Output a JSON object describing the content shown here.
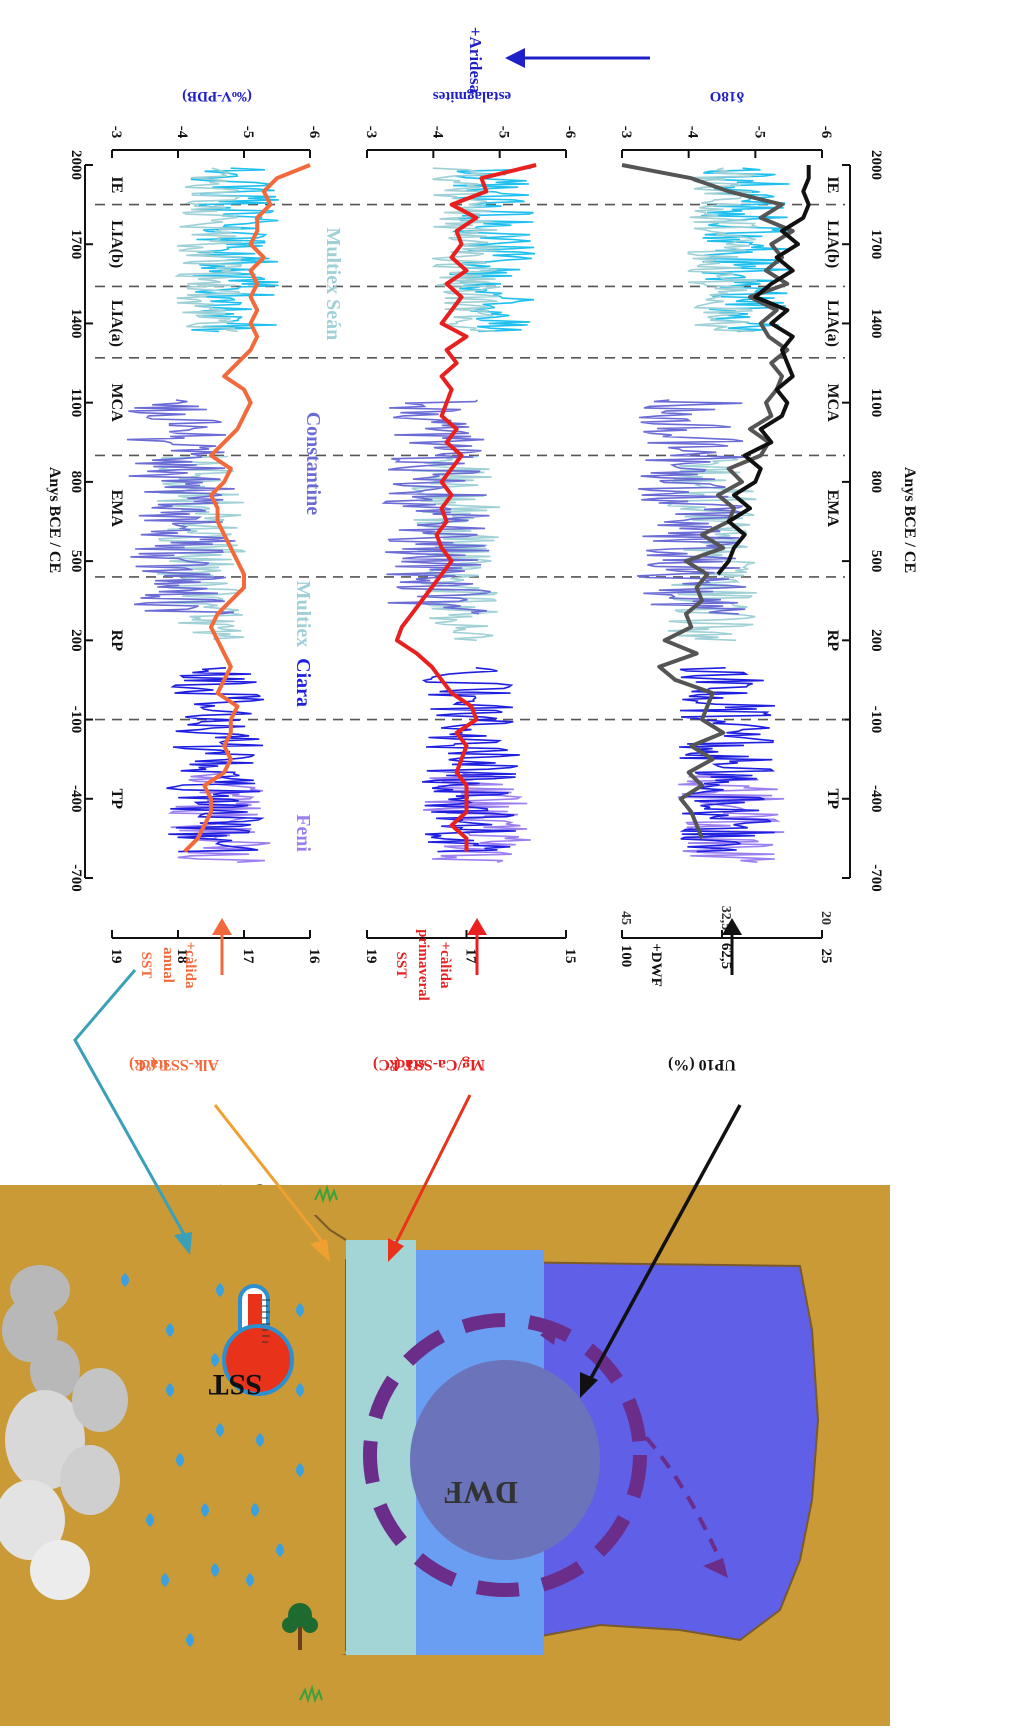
{
  "chart_data": {
    "type": "line",
    "orientation": "rotated",
    "xaxis": {
      "label": "Anys BCE / CE",
      "ticks": [
        -700,
        -400,
        -100,
        200,
        500,
        800,
        1100,
        1400,
        1700,
        2000
      ],
      "range": [
        -700,
        2000
      ]
    },
    "periods": [
      {
        "label": "TP",
        "center": -400
      },
      {
        "label": "RP",
        "center": 200
      },
      {
        "label": "EMA",
        "center": 700
      },
      {
        "label": "MCA",
        "center": 1100
      },
      {
        "label": "LIA(a)",
        "center": 1400
      },
      {
        "label": "LIA(b)",
        "center": 1700
      },
      {
        "label": "IE",
        "center": 1925
      }
    ],
    "period_boundaries": [
      -100,
      440,
      900,
      1270,
      1540,
      1850
    ],
    "panels": [
      {
        "id": "panel1",
        "left_axis": {
          "label_lines": [
            "stack",
            "Alk-SST (ºC)"
          ],
          "ticks": [
            16,
            17,
            18,
            19
          ],
          "range": [
            16,
            19
          ]
        },
        "left_note": [
          "SST",
          "anual",
          "+càlida"
        ],
        "right_axis": {
          "label": "(‰V-PDB)",
          "ticks": [
            -6,
            -5,
            -4,
            -3
          ],
          "range": [
            -6,
            -3
          ]
        },
        "series_labels": [
          "Feni",
          "Ciara",
          "Multiex",
          "Constantine",
          "Multiex Seán"
        ],
        "main_series": {
          "color": "#f26a3b",
          "x": [
            -600,
            -550,
            -500,
            -450,
            -400,
            -350,
            -300,
            -250,
            -200,
            -150,
            -100,
            -50,
            0,
            50,
            100,
            150,
            200,
            250,
            300,
            350,
            400,
            450,
            500,
            550,
            600,
            650,
            700,
            750,
            800,
            850,
            900,
            950,
            1000,
            1050,
            1100,
            1150,
            1200,
            1250,
            1300,
            1350,
            1400,
            1450,
            1500,
            1550,
            1600,
            1650,
            1700,
            1750,
            1800,
            1850,
            1900,
            1950,
            2000
          ],
          "y": [
            17.9,
            17.7,
            17.6,
            17.5,
            17.5,
            17.6,
            17.3,
            17.2,
            17.3,
            17.2,
            17.2,
            17.1,
            17.4,
            17.3,
            17.2,
            17.3,
            17.4,
            17.5,
            17.4,
            17.2,
            17.0,
            17.0,
            17.1,
            17.2,
            17.3,
            17.4,
            17.4,
            17.5,
            17.3,
            17.2,
            17.5,
            17.3,
            17.1,
            17.0,
            16.9,
            17.0,
            17.3,
            17.1,
            16.9,
            16.8,
            16.9,
            16.8,
            16.9,
            16.8,
            16.9,
            16.7,
            16.9,
            16.8,
            16.8,
            16.6,
            16.7,
            16.5,
            16.0
          ]
        }
      },
      {
        "id": "panel2",
        "left_axis": {
          "label_lines": [
            "stack",
            "Mg/Ca-SST (ºC)"
          ],
          "ticks": [
            15,
            17,
            19
          ],
          "range": [
            15,
            19
          ]
        },
        "left_note": [
          "SST",
          "primaveral",
          "+càlida"
        ],
        "right_axis": {
          "label": "estalagmites",
          "ticks": [
            -6,
            -5,
            -4,
            -3
          ],
          "range": [
            -6,
            -3
          ]
        },
        "main_series": {
          "color": "#e82020",
          "x": [
            -600,
            -550,
            -500,
            -450,
            -400,
            -350,
            -300,
            -250,
            -200,
            -150,
            -100,
            -50,
            0,
            50,
            100,
            150,
            200,
            250,
            300,
            350,
            400,
            450,
            500,
            550,
            600,
            650,
            700,
            750,
            800,
            850,
            900,
            950,
            1000,
            1050,
            1100,
            1150,
            1200,
            1250,
            1300,
            1350,
            1400,
            1450,
            1500,
            1550,
            1600,
            1650,
            1700,
            1750,
            1800,
            1850,
            1900,
            1950,
            2000
          ],
          "y": [
            17.0,
            17.0,
            17.3,
            17.0,
            17.0,
            17.0,
            17.2,
            17.1,
            17.0,
            17.2,
            16.8,
            16.9,
            17.3,
            17.5,
            17.7,
            18.0,
            18.4,
            18.3,
            18.1,
            17.9,
            17.7,
            17.5,
            17.3,
            17.5,
            17.6,
            17.4,
            17.5,
            17.3,
            17.5,
            17.3,
            17.1,
            17.4,
            17.2,
            17.5,
            17.4,
            17.3,
            17.5,
            17.2,
            17.4,
            17.0,
            17.5,
            17.3,
            17.1,
            17.4,
            17.0,
            17.3,
            17.1,
            17.2,
            16.8,
            17.3,
            16.6,
            16.7,
            15.6
          ]
        }
      },
      {
        "id": "panel3",
        "left_axis": {
          "label": "UP10 (%)",
          "ticks": [
            100,
            62.5,
            25
          ],
          "range": [
            25,
            100
          ]
        },
        "left_axis_secondary": {
          "ticks": [
            45,
            32.5,
            20
          ]
        },
        "left_note": [
          "+DWF"
        ],
        "right_axis": {
          "label": "δ18O",
          "ticks": [
            -6,
            -5,
            -4,
            -3
          ],
          "range": [
            -6,
            -3
          ]
        },
        "right_note": "+Aridesa",
        "series": [
          {
            "name": "",
            "color": "#555555",
            "x": [
              -550,
              -500,
              -450,
              -400,
              -350,
              -300,
              -250,
              -200,
              -150,
              -100,
              -50,
              0,
              50,
              100,
              150,
              200,
              250,
              300,
              350,
              400,
              450,
              500,
              550,
              600,
              650,
              700,
              750,
              800,
              850,
              900,
              950,
              1000,
              1050,
              1100,
              1150,
              1200,
              1250,
              1300,
              1350,
              1400,
              1450,
              1500,
              1550,
              1600,
              1650,
              1700,
              1750,
              1800,
              1850,
              1900,
              1950,
              2000
            ],
            "y": [
              70,
              72,
              74,
              78,
              70,
              75,
              66,
              74,
              62,
              70,
              68,
              66,
              80,
              86,
              72,
              84,
              74,
              76,
              70,
              72,
              68,
              76,
              62,
              70,
              60,
              58,
              64,
              55,
              60,
              48,
              45,
              52,
              44,
              46,
              42,
              40,
              44,
              38,
              45,
              48,
              42,
              52,
              38,
              46,
              40,
              44,
              36,
              48,
              40,
              60,
              74,
              100
            ]
          },
          {
            "name": "",
            "color": "#111111",
            "x": [
              450,
              500,
              550,
              600,
              650,
              700,
              750,
              800,
              850,
              900,
              950,
              1000,
              1050,
              1100,
              1150,
              1200,
              1250,
              1300,
              1350,
              1400,
              1450,
              1500,
              1550,
              1600,
              1650,
              1700,
              1750,
              1800,
              1850,
              1900,
              1950,
              2000
            ],
            "y": [
              64,
              60,
              58,
              54,
              60,
              52,
              58,
              50,
              48,
              54,
              44,
              48,
              40,
              38,
              42,
              36,
              38,
              40,
              36,
              44,
              38,
              50,
              44,
              36,
              42,
              34,
              40,
              32,
              30,
              32,
              30,
              30
            ]
          }
        ]
      }
    ],
    "diagram_labels": {
      "sst": "SST",
      "dwf": "DWF"
    },
    "colors": {
      "feni": "#9b7ff0",
      "ciara": "#1f1fe0",
      "multiex": "#9ed0d6",
      "constantine": "#6b6bd6",
      "sean": "#1fc0ee",
      "ground": "#c99a36",
      "water_top": "#a3d4d6",
      "water_mid": "#6a9ef2",
      "water_deep": "#5f5fe8"
    }
  }
}
